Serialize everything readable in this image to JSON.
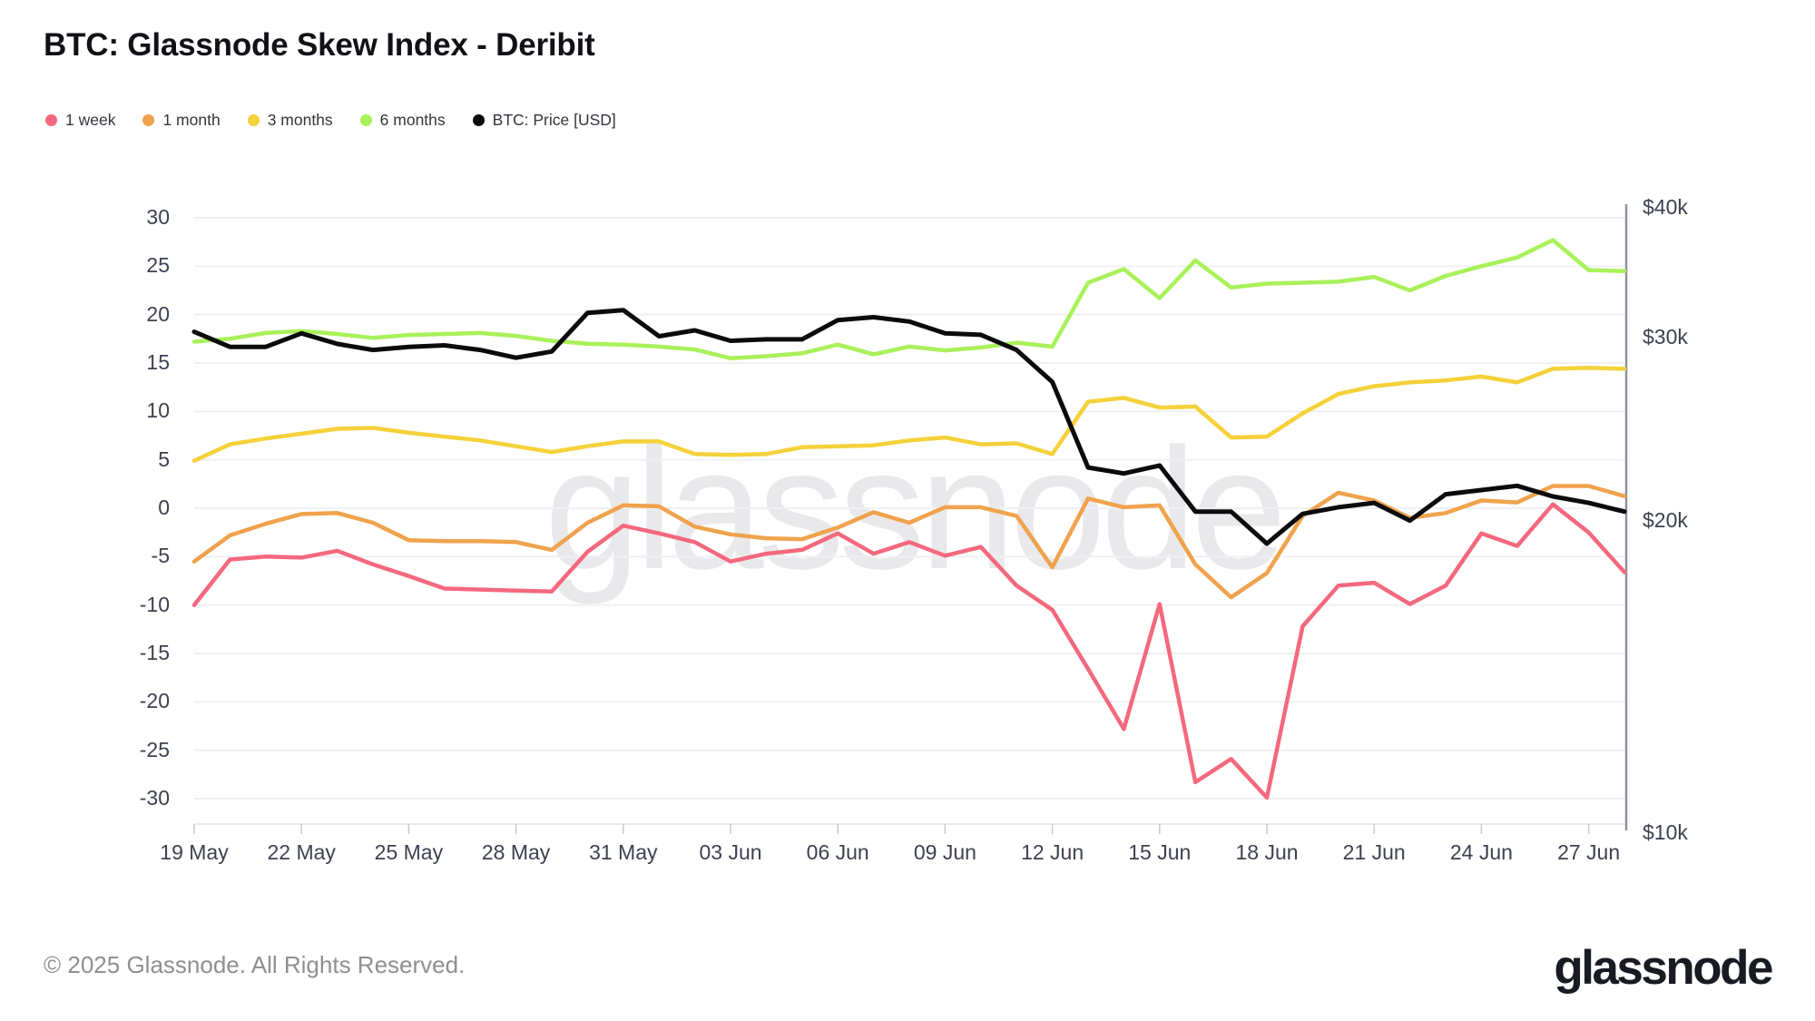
{
  "title": "BTC: Glassnode Skew Index - Deribit",
  "watermark": {
    "text": "glassnode"
  },
  "footer": {
    "copyright": "© 2025 Glassnode. All Rights Reserved.",
    "logo_text": "glassnode"
  },
  "legend": [
    {
      "label": "1 week",
      "color": "#F4687E"
    },
    {
      "label": "1 month",
      "color": "#F0A24C"
    },
    {
      "label": "3 months",
      "color": "#F5D13A"
    },
    {
      "label": "6 months",
      "color": "#A9F15A"
    },
    {
      "label": "BTC: Price [USD]",
      "color": "#0B0B0E"
    }
  ],
  "chart_data": {
    "type": "line",
    "title": "BTC: Glassnode Skew Index - Deribit",
    "x_description": "daily points, 19 May to 28 Jun",
    "n_points": 41,
    "x_tick_labels": [
      "19 May",
      "22 May",
      "25 May",
      "28 May",
      "31 May",
      "03 Jun",
      "06 Jun",
      "09 Jun",
      "12 Jun",
      "15 Jun",
      "18 Jun",
      "21 Jun",
      "24 Jun",
      "27 Jun"
    ],
    "x_tick_indices": [
      0,
      3,
      6,
      9,
      12,
      15,
      18,
      21,
      24,
      27,
      30,
      33,
      36,
      39
    ],
    "left_axis": {
      "ticks": [
        30,
        25,
        20,
        15,
        10,
        5,
        0,
        -5,
        -10,
        -15,
        -20,
        -25,
        -30
      ],
      "grid": true
    },
    "right_axis": {
      "scale": "log",
      "labels": [
        "$40k",
        "$30k",
        "$20k",
        "$10k"
      ],
      "values": [
        40000,
        30000,
        20000,
        10000
      ]
    },
    "series": [
      {
        "name": "1 week",
        "axis": "left",
        "color": "#F4687E",
        "values": [
          -10.0,
          -5.3,
          -5.0,
          -5.1,
          -4.4,
          -5.8,
          -7.0,
          -8.3,
          -8.4,
          -8.5,
          -8.6,
          -4.5,
          -1.8,
          -2.6,
          -3.5,
          -5.5,
          -4.7,
          -4.3,
          -2.6,
          -4.7,
          -3.5,
          -4.9,
          -4.0,
          -8.0,
          -10.5,
          -16.6,
          -22.8,
          -9.9,
          -28.3,
          -25.9,
          -29.9,
          -12.2,
          -8.0,
          -7.7,
          -9.9,
          -8.0,
          -2.6,
          -3.9,
          0.4,
          -2.5,
          -6.6
        ]
      },
      {
        "name": "1 month",
        "axis": "left",
        "color": "#F0A24C",
        "values": [
          -5.5,
          -2.8,
          -1.6,
          -0.6,
          -0.5,
          -1.5,
          -3.3,
          -3.4,
          -3.4,
          -3.5,
          -4.3,
          -1.5,
          0.3,
          0.2,
          -1.9,
          -2.7,
          -3.1,
          -3.2,
          -2.0,
          -0.4,
          -1.5,
          0.1,
          0.1,
          -0.8,
          -6.1,
          1.0,
          0.1,
          0.3,
          -5.8,
          -9.2,
          -6.7,
          -0.8,
          1.6,
          0.8,
          -1.0,
          -0.5,
          0.8,
          0.6,
          2.3,
          2.3,
          1.25
        ]
      },
      {
        "name": "3 months",
        "axis": "left",
        "color": "#F5D13A",
        "values": [
          4.9,
          6.6,
          7.2,
          7.7,
          8.2,
          8.3,
          7.8,
          7.4,
          7.0,
          6.4,
          5.8,
          6.4,
          6.9,
          6.9,
          5.6,
          5.5,
          5.6,
          6.3,
          6.4,
          6.5,
          7.0,
          7.3,
          6.6,
          6.7,
          5.6,
          11.0,
          11.4,
          10.4,
          10.5,
          7.3,
          7.4,
          9.8,
          11.8,
          12.6,
          13.0,
          13.2,
          13.6,
          13.0,
          14.4,
          14.5,
          14.4
        ]
      },
      {
        "name": "6 months",
        "axis": "left",
        "color": "#A9F15A",
        "values": [
          17.2,
          17.5,
          18.1,
          18.3,
          18.0,
          17.6,
          17.9,
          18.0,
          18.1,
          17.8,
          17.3,
          17.0,
          16.9,
          16.7,
          16.4,
          15.5,
          15.7,
          16.0,
          16.9,
          15.9,
          16.7,
          16.3,
          16.6,
          17.1,
          16.7,
          23.3,
          24.7,
          21.7,
          25.6,
          22.8,
          23.2,
          23.3,
          23.4,
          23.9,
          22.5,
          24.0,
          25.0,
          25.9,
          27.7,
          24.6,
          24.5
        ]
      },
      {
        "name": "BTC: Price [USD]",
        "axis": "right",
        "color": "#0B0B0E",
        "values": [
          30400,
          29400,
          29400,
          30300,
          29600,
          29200,
          29400,
          29500,
          29200,
          28700,
          29100,
          31700,
          31900,
          30100,
          30500,
          29800,
          29900,
          29900,
          31200,
          31400,
          31100,
          30300,
          30200,
          29200,
          27200,
          22500,
          22200,
          22600,
          20400,
          20400,
          19000,
          20300,
          20600,
          20800,
          20000,
          21200,
          21400,
          21600,
          21100,
          20800,
          20400
        ]
      }
    ]
  }
}
